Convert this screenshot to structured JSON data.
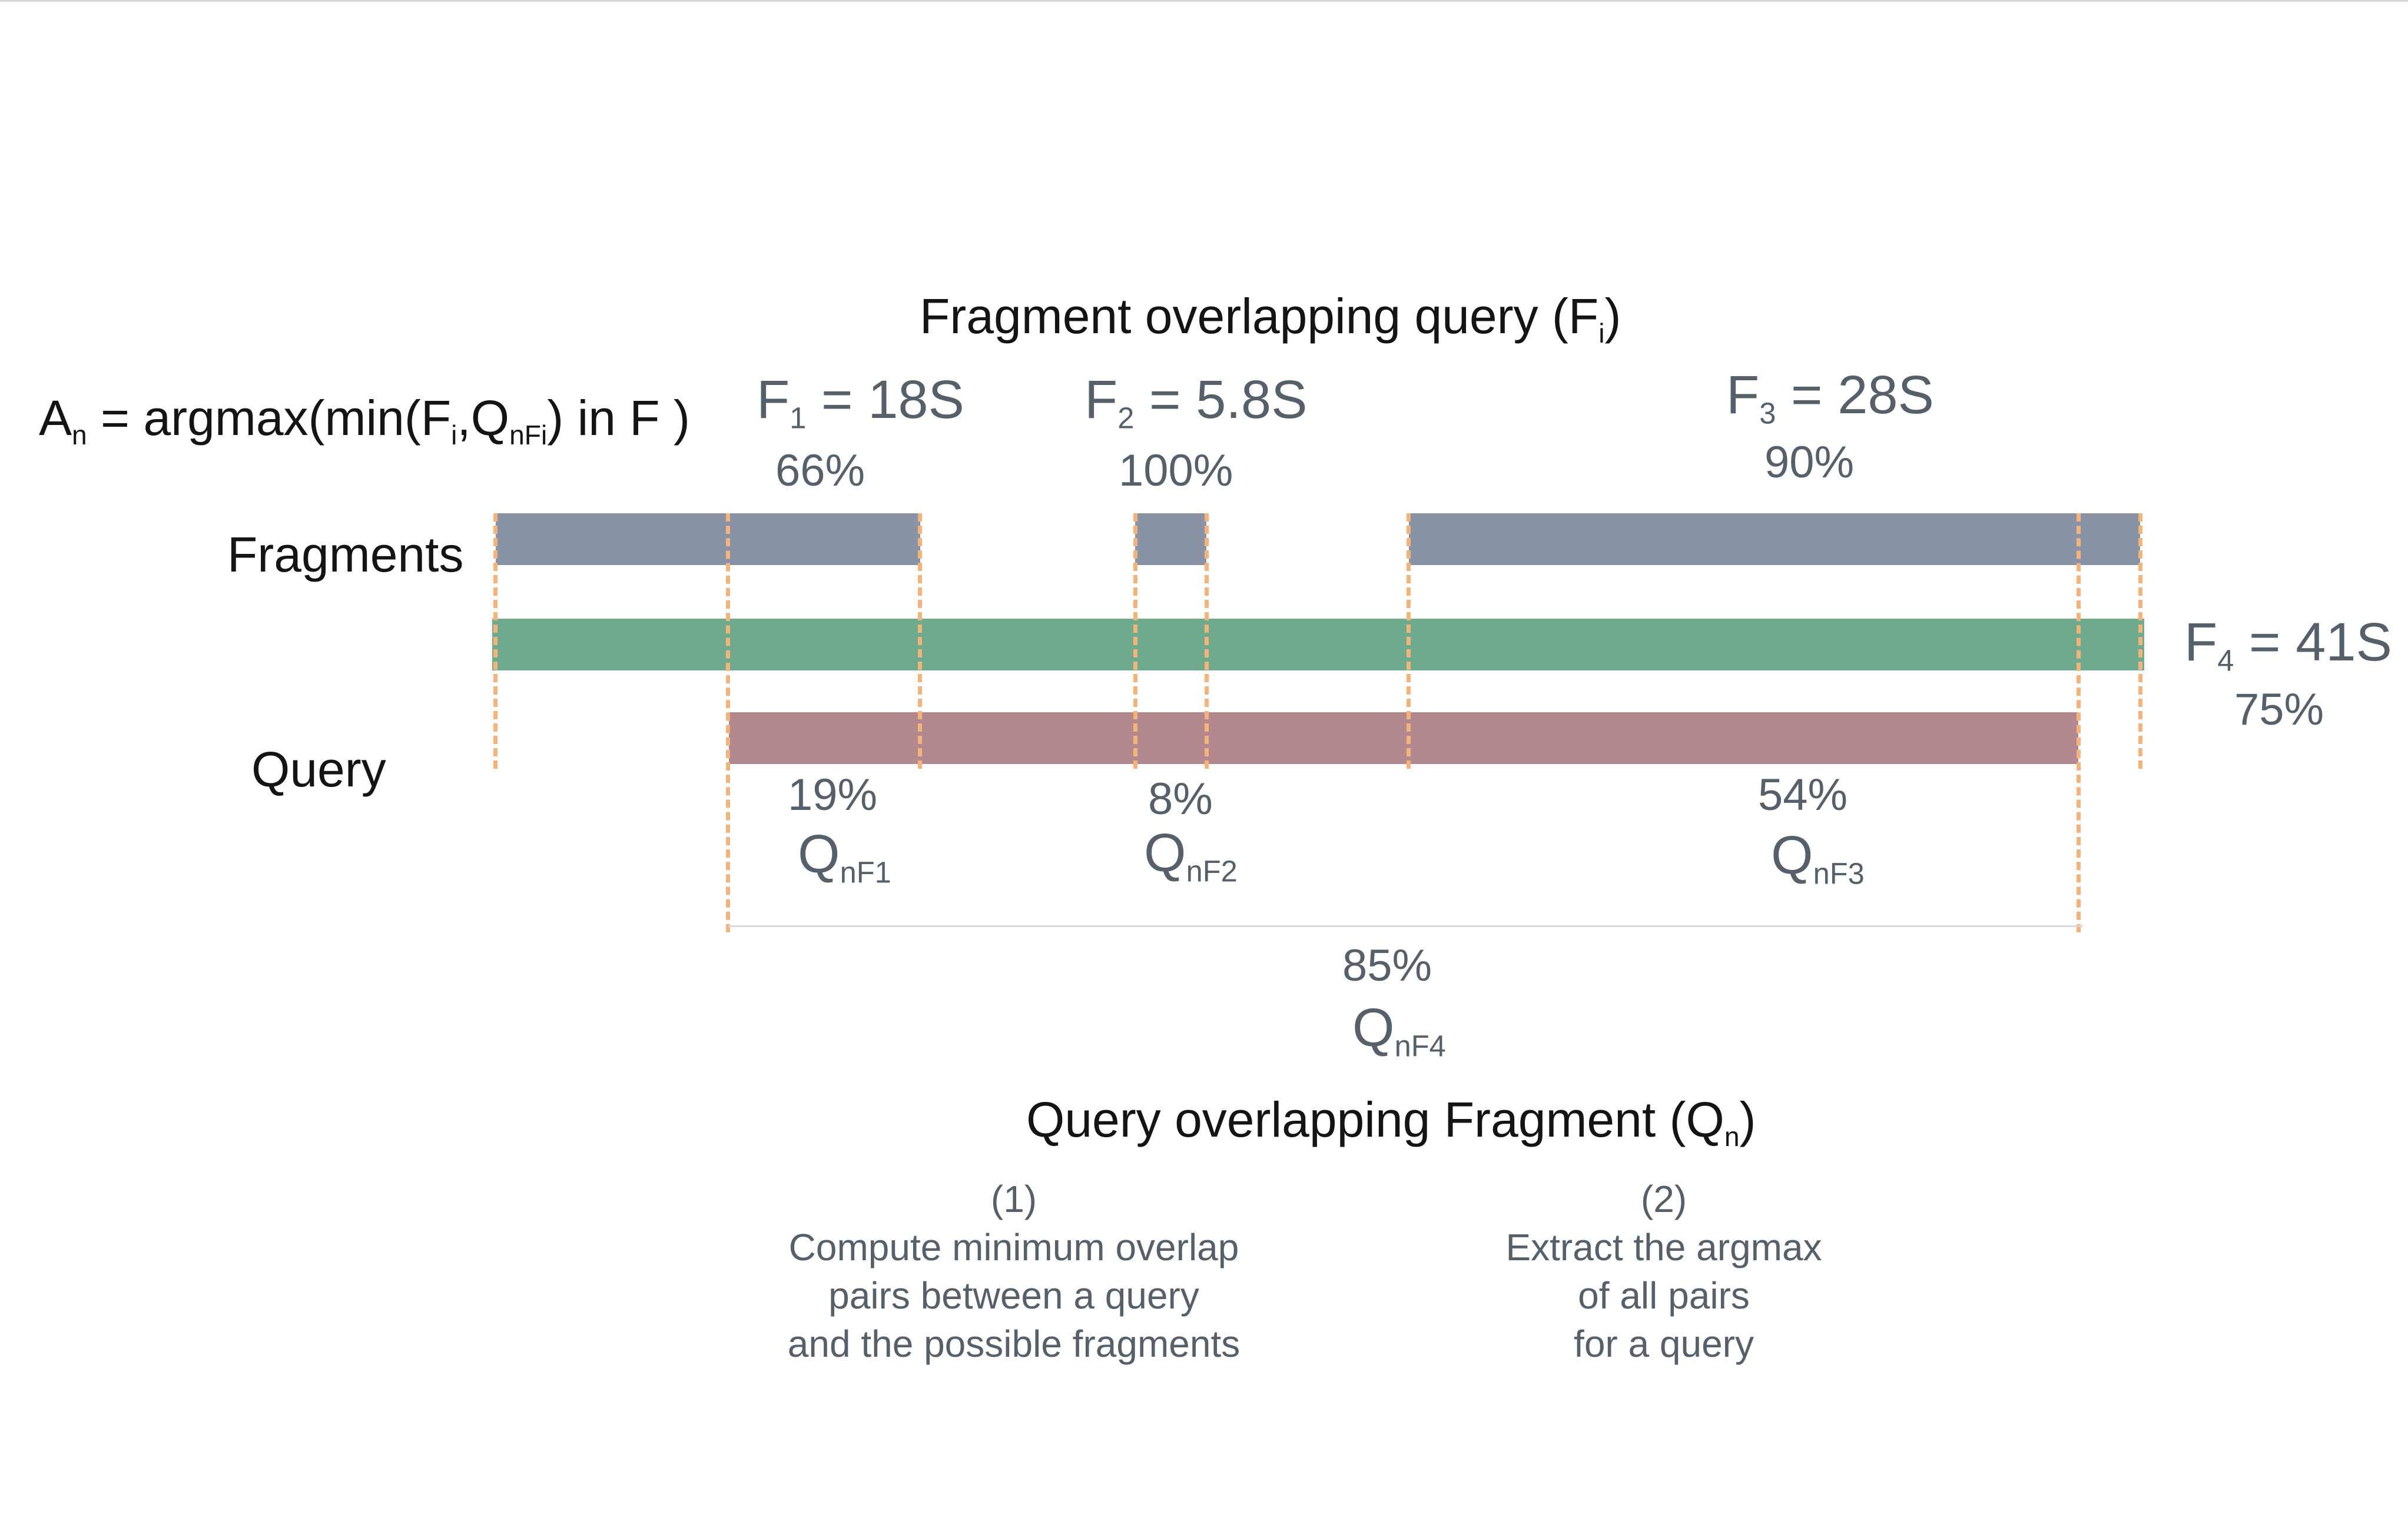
{
  "title": {
    "text": "Fragment overlapping query (F",
    "sub": "i",
    "close": ")"
  },
  "formula": {
    "a": "A",
    "a_sub": "n",
    "part1": " = argmax(min(F",
    "i_sub": "i",
    "part2": ",Q",
    "q_sub": "nFi",
    "part3": ") in F )"
  },
  "row_labels": {
    "fragments": "Fragments",
    "query": "Query"
  },
  "fragments": [
    {
      "name": "F",
      "sub": "1",
      "value": " = 18S",
      "percent": "66%"
    },
    {
      "name": "F",
      "sub": "2",
      "value": " = 5.8S",
      "percent": "100%"
    },
    {
      "name": "F",
      "sub": "3",
      "value": " = 28S",
      "percent": "90%"
    },
    {
      "name": "F",
      "sub": "4",
      "value": " = 41S",
      "percent": "75%"
    }
  ],
  "query_overlaps": [
    {
      "percent": "19%",
      "name": "Q",
      "sub": "nF1"
    },
    {
      "percent": "8%",
      "name": "Q",
      "sub": "nF2"
    },
    {
      "percent": "54%",
      "name": "Q",
      "sub": "nF3"
    },
    {
      "percent": "85%",
      "name": "Q",
      "sub": "nF4"
    }
  ],
  "bottom_title": {
    "text": "Query overlapping Fragment (Q",
    "sub": "n",
    "close": ")"
  },
  "steps": [
    {
      "number": "(1)",
      "lines": [
        "Compute minimum overlap",
        "pairs between a query",
        "and the possible fragments"
      ]
    },
    {
      "number": "(2)",
      "lines": [
        "Extract the argmax",
        "of all pairs",
        "for a query"
      ]
    }
  ],
  "colors": {
    "fragment_bar": "#8a92a6",
    "f4_bar": "#6faa8c",
    "query_bar": "#b4898d",
    "guide_lines": "#f2b47c",
    "bracket_line": "#d9d9d9",
    "text_dark": "#141414",
    "text_grey": "#55606b"
  }
}
